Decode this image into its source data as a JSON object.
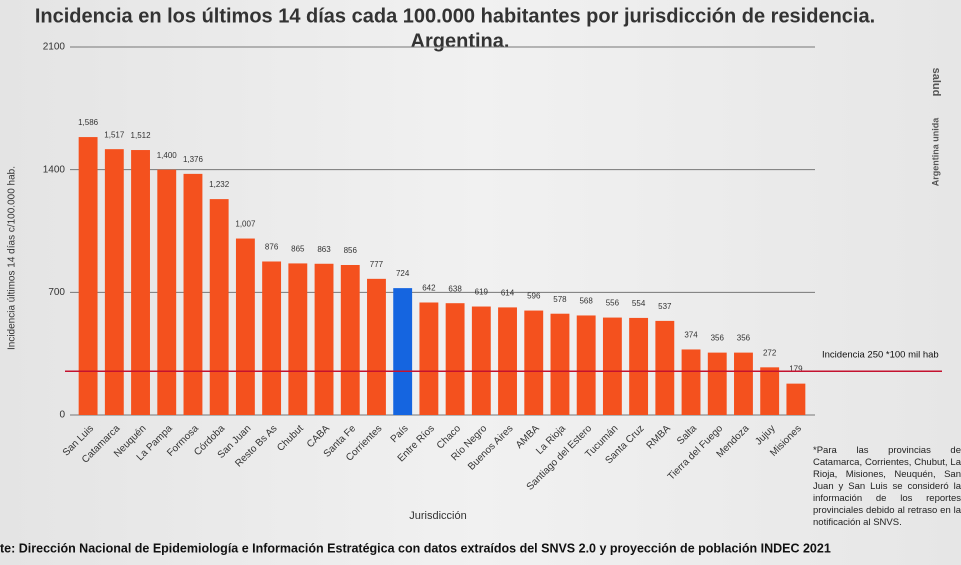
{
  "chart_data": {
    "type": "bar",
    "title": "Incidencia en los últimos 14 días cada 100.000 habitantes por jurisdicción de residencia.",
    "subtitle": "Argentina.",
    "y_label": "Incidencia últimos 14 días c/100.000 hab.",
    "x_label": "Jurisdicción",
    "categories": [
      "San Luis",
      "Catamarca",
      "Neuquén",
      "La Pampa",
      "Formosa",
      "Córdoba",
      "San Juan",
      "Resto Bs As",
      "Chubut",
      "CABA",
      "Santa Fe",
      "Corrientes",
      "País",
      "Entre Ríos",
      "Chaco",
      "Río Negro",
      "Buenos Aires",
      "AMBA",
      "La Rioja",
      "Santiago del Estero",
      "Tucumán",
      "Santa Cruz",
      "RMBA",
      "Salta",
      "Tierra del Fuego",
      "Mendoza",
      "Jujuy",
      "Misiones"
    ],
    "values": [
      1586,
      1517,
      1512,
      1400,
      1376,
      1232,
      1007,
      876,
      865,
      863,
      856,
      777,
      724,
      642,
      638,
      619,
      614,
      596,
      578,
      568,
      556,
      554,
      537,
      374,
      356,
      356,
      272,
      179
    ],
    "value_labels": [
      "1,586",
      "1,517",
      "1,512",
      "1,400",
      "1,376",
      "1,232",
      "1,007",
      "876",
      "865",
      "863",
      "856",
      "777",
      "724",
      "642",
      "638",
      "619",
      "614",
      "596",
      "578",
      "568",
      "556",
      "554",
      "537",
      "374",
      "356",
      "356",
      "272",
      "179"
    ],
    "colors": [
      "#f4511e",
      "#f4511e",
      "#f4511e",
      "#f4511e",
      "#f4511e",
      "#f4511e",
      "#f4511e",
      "#f4511e",
      "#f4511e",
      "#f4511e",
      "#f4511e",
      "#f4511e",
      "#1565e0",
      "#f4511e",
      "#f4511e",
      "#f4511e",
      "#f4511e",
      "#f4511e",
      "#f4511e",
      "#f4511e",
      "#f4511e",
      "#f4511e",
      "#f4511e",
      "#f4511e",
      "#f4511e",
      "#f4511e",
      "#f4511e",
      "#f4511e"
    ],
    "ylim": [
      0,
      2100
    ],
    "yticks": [
      0,
      700,
      1400,
      2100
    ],
    "grid": true,
    "reference_line": {
      "value": 250,
      "label": "Incidencia 250 *100 mil hab",
      "color": "#c4122f"
    },
    "footnote": "*Para las provincias de Catamarca, Corrientes, Chubut, La Rioja, Misiones, Neuquén, San Juan y San Luis se consideró la información de los reportes provinciales debido al retraso en la notificación al SNVS.",
    "source": "te: Dirección Nacional de Epidemiología e Información Estratégica con datos extraídos del SNVS 2.0 y proyección de población INDEC 2021"
  },
  "logo": {
    "top": "salud",
    "bottom": "Argentina unida"
  }
}
